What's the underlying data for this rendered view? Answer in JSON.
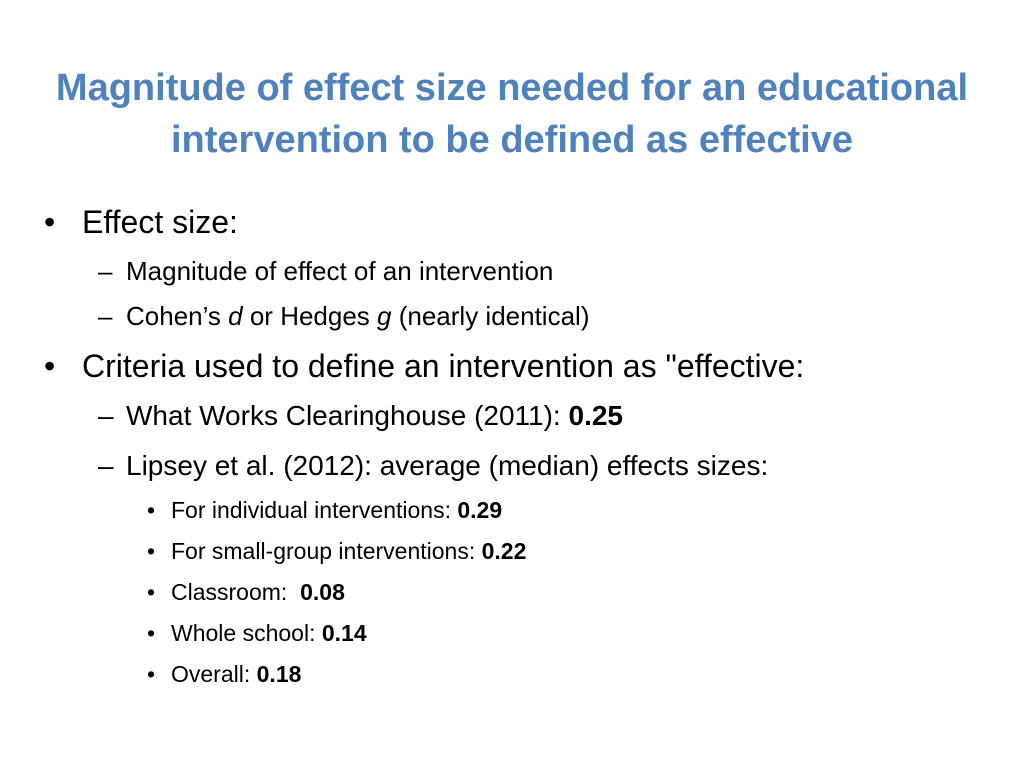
{
  "slide": {
    "title_line1": "Magnitude of effect size needed for an educational",
    "title_line2": "intervention to be defined as effective",
    "bullet_char": "•",
    "dash_char": "–",
    "items": {
      "effect_size": "Effect size:",
      "magnitude": "Magnitude of effect of an intervention",
      "cohen_prefix": "Cohen’s ",
      "cohen_d": "d",
      "cohen_mid": " or Hedges ",
      "cohen_g": "g",
      "cohen_suffix": " (nearly identical)",
      "criteria": "Criteria used to define an intervention as \"effective:",
      "wwc_label": "What Works Clearinghouse (2011): ",
      "wwc_value": "0.25",
      "lipsey": "Lipsey et al. (2012): average (median) effects sizes:",
      "individual_label": "For individual interventions: ",
      "individual_value": "0.29",
      "small_group_label": "For small-group interventions: ",
      "small_group_value": "0.22",
      "classroom_label": "Classroom:  ",
      "classroom_value": "0.08",
      "whole_school_label": "Whole school: ",
      "whole_school_value": "0.14",
      "overall_label": "Overall: ",
      "overall_value": "0.18"
    }
  }
}
